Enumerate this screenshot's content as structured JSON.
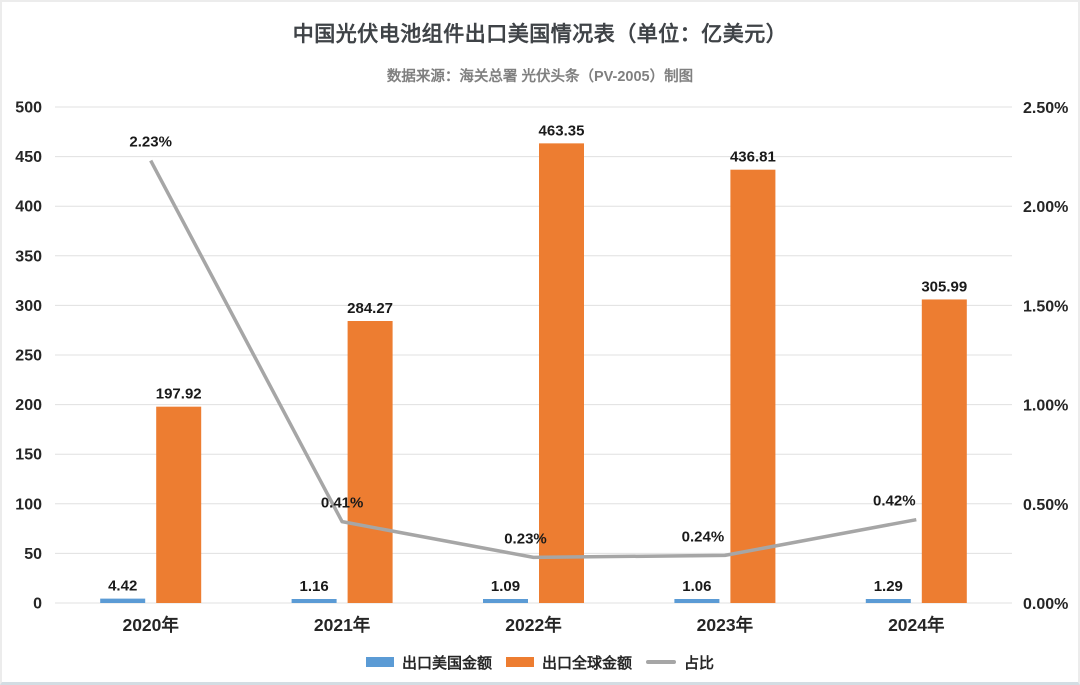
{
  "title": "中国光伏电池组件出口美国情况表（单位：亿美元）",
  "subtitle": "数据来源：海关总署 光伏头条（PV-2005）制图",
  "chart_data": {
    "type": "bar",
    "combo": "grouped-bars-plus-line-secondary-axis",
    "title": "中国光伏电池组件出口美国情况表（单位：亿美元）",
    "categories": [
      "2020年",
      "2021年",
      "2022年",
      "2023年",
      "2024年"
    ],
    "series": [
      {
        "name": "出口美国金额",
        "type": "bar",
        "axis": "left",
        "color": "#5B9BD5",
        "values": [
          4.42,
          1.16,
          1.09,
          1.06,
          1.29
        ],
        "labels": [
          "4.42",
          "1.16",
          "1.09",
          "1.06",
          "1.29"
        ]
      },
      {
        "name": "出口全球金额",
        "type": "bar",
        "axis": "left",
        "color": "#ED7D31",
        "values": [
          197.92,
          284.27,
          463.35,
          436.81,
          305.99
        ],
        "labels": [
          "197.92",
          "284.27",
          "463.35",
          "436.81",
          "305.99"
        ]
      },
      {
        "name": "占比",
        "type": "line",
        "axis": "right",
        "color": "#A6A6A6",
        "values": [
          2.23,
          0.41,
          0.23,
          0.24,
          0.42
        ],
        "labels": [
          "2.23%",
          "0.41%",
          "0.23%",
          "0.24%",
          "0.42%"
        ]
      }
    ],
    "left_axis": {
      "min": 0,
      "max": 500,
      "step": 50,
      "ticks": [
        "500",
        "450",
        "400",
        "350",
        "300",
        "250",
        "200",
        "150",
        "100",
        "50",
        "0"
      ]
    },
    "right_axis": {
      "min": 0,
      "max": 2.5,
      "ticks": [
        "2.50%",
        "2.00%",
        "1.50%",
        "1.00%",
        "0.50%",
        "0.00%"
      ]
    },
    "grid": true,
    "legend_position": "bottom"
  }
}
